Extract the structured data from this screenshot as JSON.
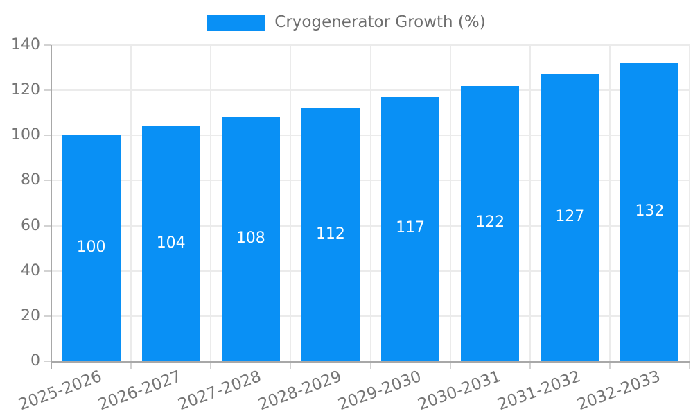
{
  "chart_data": {
    "type": "bar",
    "title": "",
    "legend": {
      "label": "Cryogenerator Growth (%)",
      "position": "top-center"
    },
    "categories": [
      "2025-2026",
      "2026-2027",
      "2027-2028",
      "2028-2029",
      "2029-2030",
      "2030-2031",
      "2031-2032",
      "2032-2033"
    ],
    "values": [
      100,
      104,
      108,
      112,
      117,
      122,
      127,
      132
    ],
    "value_labels_visible": true,
    "xlabel": "",
    "ylabel": "",
    "ylim": [
      0,
      140
    ],
    "yticks": [
      0,
      20,
      40,
      60,
      80,
      100,
      120,
      140
    ],
    "grid": "both",
    "colors": {
      "bar": "#0990F5",
      "grid": "#ebebeb",
      "axis": "#a8a8a8",
      "tick": "#d2d2d2",
      "axis_text": "#757575",
      "legend_text": "#6e6e6e",
      "value_text": "#ffffff",
      "background": "#ffffff"
    }
  }
}
